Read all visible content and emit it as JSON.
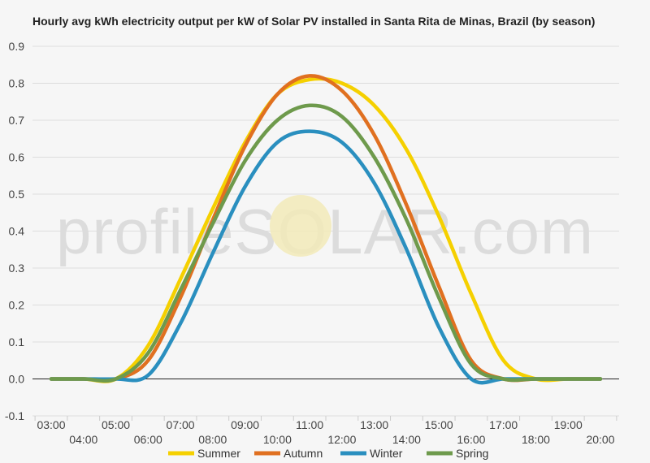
{
  "watermark": "profileSOLAR.com",
  "chart_data": {
    "type": "line",
    "title": "Hourly avg kWh electricity output per kW of Solar PV installed in Santa Rita de Minas, Brazil (by season)",
    "xlabel": "",
    "ylabel": "",
    "x": [
      "03:00",
      "04:00",
      "05:00",
      "06:00",
      "07:00",
      "08:00",
      "09:00",
      "10:00",
      "11:00",
      "12:00",
      "13:00",
      "14:00",
      "15:00",
      "16:00",
      "17:00",
      "18:00",
      "19:00",
      "20:00"
    ],
    "ylim": [
      -0.1,
      0.9
    ],
    "yticks": [
      "-0.1",
      "0.0",
      "0.1",
      "0.2",
      "0.3",
      "0.4",
      "0.5",
      "0.6",
      "0.7",
      "0.8",
      "0.9"
    ],
    "grid": true,
    "legend_position": "bottom",
    "series": [
      {
        "name": "Summer",
        "color": "#f5d000",
        "values": [
          0.0,
          0.0,
          0.0,
          0.09,
          0.27,
          0.46,
          0.64,
          0.77,
          0.81,
          0.8,
          0.74,
          0.62,
          0.44,
          0.23,
          0.05,
          0.0,
          0.0,
          0.0
        ]
      },
      {
        "name": "Autumn",
        "color": "#e07020",
        "values": [
          0.0,
          0.0,
          0.0,
          0.05,
          0.22,
          0.43,
          0.63,
          0.77,
          0.82,
          0.78,
          0.66,
          0.47,
          0.25,
          0.05,
          0.0,
          0.0,
          0.0,
          0.0
        ]
      },
      {
        "name": "Winter",
        "color": "#2a8fbf",
        "values": [
          0.0,
          0.0,
          0.0,
          0.01,
          0.15,
          0.34,
          0.52,
          0.64,
          0.67,
          0.64,
          0.53,
          0.35,
          0.14,
          0.0,
          0.0,
          0.0,
          0.0,
          0.0
        ]
      },
      {
        "name": "Spring",
        "color": "#6e9a4c",
        "values": [
          0.0,
          0.0,
          0.0,
          0.07,
          0.24,
          0.42,
          0.59,
          0.7,
          0.74,
          0.71,
          0.6,
          0.43,
          0.22,
          0.04,
          0.0,
          0.0,
          0.0,
          0.0
        ]
      }
    ]
  }
}
